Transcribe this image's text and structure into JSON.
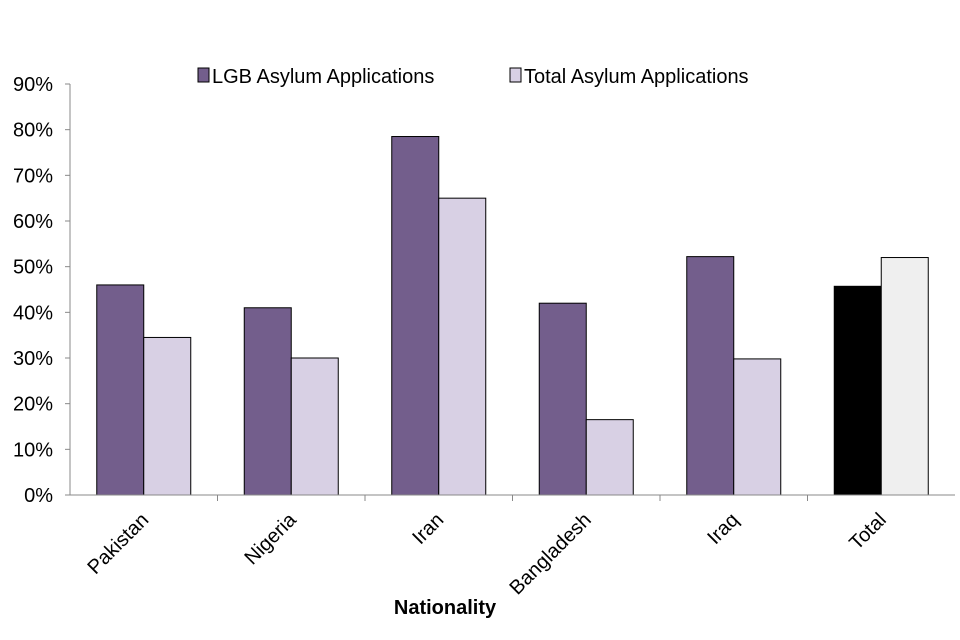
{
  "chart_data": {
    "type": "bar",
    "title": "",
    "xlabel": "Nationality",
    "ylabel": "",
    "categories": [
      "Pakistan",
      "Nigeria",
      "Iran",
      "Bangladesh",
      "Iraq",
      "Total"
    ],
    "series": [
      {
        "name": "LGB Asylum Applications",
        "values": [
          0.46,
          0.41,
          0.785,
          0.42,
          0.522,
          0.457
        ],
        "color": "#735e8c"
      },
      {
        "name": "Total Asylum Applications",
        "values": [
          0.345,
          0.3,
          0.65,
          0.165,
          0.298,
          0.52
        ],
        "color": "#d8d0e4"
      }
    ],
    "highlight_category": "Total",
    "highlight_colors": [
      "#000000",
      "#efefef"
    ],
    "ylim": [
      0,
      0.9
    ],
    "yticks": [
      "0%",
      "10%",
      "20%",
      "30%",
      "40%",
      "50%",
      "60%",
      "70%",
      "80%",
      "90%"
    ],
    "grid": false,
    "legend_position": "top"
  }
}
